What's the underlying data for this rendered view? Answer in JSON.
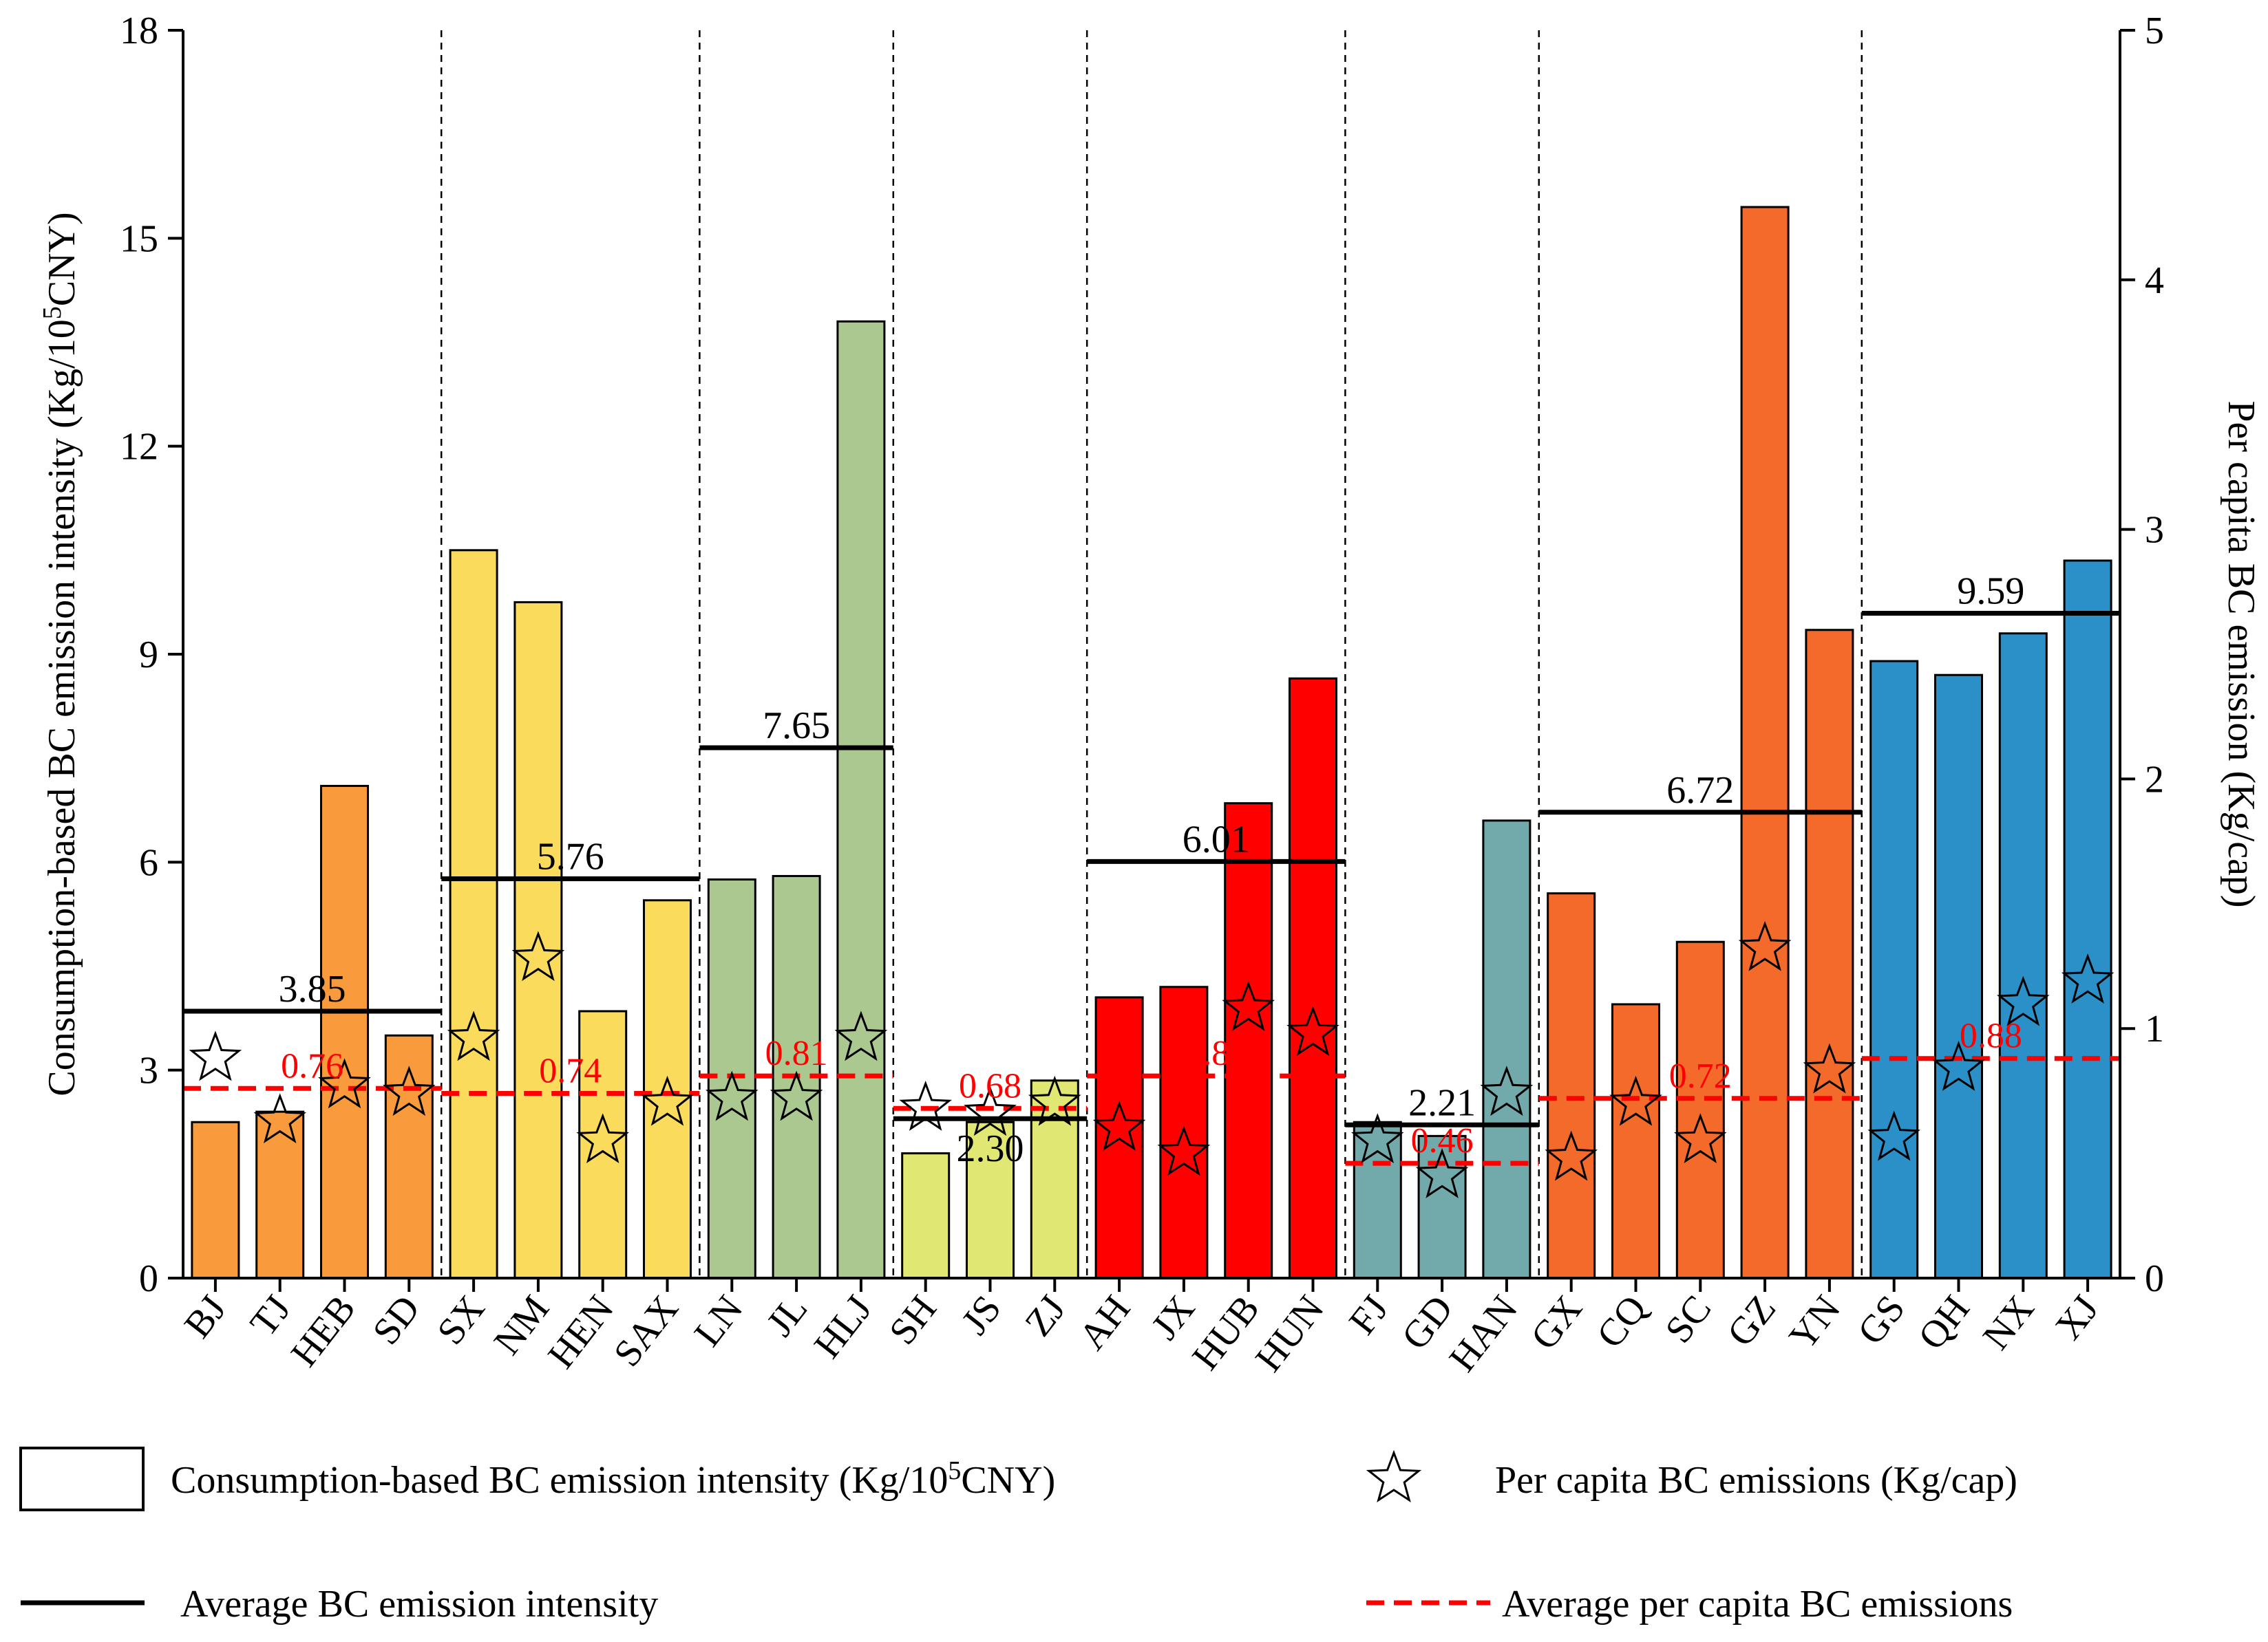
{
  "chart_data": {
    "type": "bar",
    "ylabel_left": {
      "main": "Consumption-based BC emission intensity (Kg/10",
      "sup": "5",
      "tail": "CNY)"
    },
    "ylabel_right": "Per capita BC emission (Kg/cap)",
    "ylim_left": [
      0,
      18
    ],
    "yticks_left": [
      "0",
      "3",
      "6",
      "9",
      "12",
      "15",
      "18"
    ],
    "ylim_right": [
      0,
      5
    ],
    "yticks_right": [
      "0",
      "1",
      "2",
      "3",
      "4",
      "5"
    ],
    "categories": [
      "BJ",
      "TJ",
      "HEB",
      "SD",
      "SX",
      "NM",
      "HEN",
      "SAX",
      "LN",
      "JL",
      "HLJ",
      "SH",
      "JS",
      "ZJ",
      "AH",
      "JX",
      "HUB",
      "HUN",
      "FJ",
      "GD",
      "HAN",
      "GX",
      "CQ",
      "SC",
      "GZ",
      "YN",
      "GS",
      "QH",
      "NX",
      "XJ"
    ],
    "intensity": [
      2.25,
      2.4,
      7.1,
      3.5,
      10.5,
      9.75,
      3.85,
      5.45,
      5.75,
      5.8,
      13.8,
      1.8,
      2.25,
      2.85,
      4.05,
      4.2,
      6.85,
      8.65,
      2.25,
      2.05,
      6.6,
      5.55,
      3.95,
      4.85,
      15.45,
      9.35,
      8.9,
      8.7,
      9.3,
      10.35
    ],
    "per_capita": [
      0.88,
      0.63,
      0.77,
      0.74,
      0.96,
      1.28,
      0.55,
      0.7,
      0.72,
      0.72,
      0.96,
      0.68,
      0.66,
      0.7,
      0.6,
      0.5,
      1.08,
      0.98,
      0.55,
      0.41,
      0.74,
      0.48,
      0.7,
      0.55,
      1.32,
      0.83,
      0.56,
      0.84,
      1.1,
      1.19
    ],
    "regions": [
      {
        "start": 0,
        "end": 3,
        "color": "#f99b3c",
        "avg_intensity": 3.85,
        "avg_intensity_label": "3.85",
        "avg_per_capita": 0.76,
        "avg_per_capita_label": "0.76"
      },
      {
        "start": 4,
        "end": 7,
        "color": "#fbdb5c",
        "avg_intensity": 5.76,
        "avg_intensity_label": "5.76",
        "avg_per_capita": 0.74,
        "avg_per_capita_label": "0.74"
      },
      {
        "start": 8,
        "end": 10,
        "color": "#aac88f",
        "avg_intensity": 7.65,
        "avg_intensity_label": "7.65",
        "avg_per_capita": 0.81,
        "avg_per_capita_label": "0.81"
      },
      {
        "start": 11,
        "end": 13,
        "color": "#e0e873",
        "avg_intensity": 2.3,
        "avg_intensity_label": "2.30",
        "avg_per_capita": 0.68,
        "avg_per_capita_label": "0.68"
      },
      {
        "start": 14,
        "end": 17,
        "color": "#ff0000",
        "avg_intensity": 6.01,
        "avg_intensity_label": "6.01",
        "avg_per_capita": 0.81,
        "avg_per_capita_label": "0.81"
      },
      {
        "start": 18,
        "end": 20,
        "color": "#72aaab",
        "avg_intensity": 2.21,
        "avg_intensity_label": "2.21",
        "avg_per_capita": 0.46,
        "avg_per_capita_label": "0.46"
      },
      {
        "start": 21,
        "end": 25,
        "color": "#f46a2b",
        "avg_intensity": 6.72,
        "avg_intensity_label": "6.72",
        "avg_per_capita": 0.72,
        "avg_per_capita_label": "0.72"
      },
      {
        "start": 26,
        "end": 29,
        "color": "#2a90c7",
        "avg_intensity": 9.59,
        "avg_intensity_label": "9.59",
        "avg_per_capita": 0.88,
        "avg_per_capita_label": "0.88"
      }
    ],
    "legend": {
      "bar": {
        "main": "Consumption-based BC emission intensity (Kg/10",
        "sup": "5",
        "tail": "CNY)"
      },
      "star": "Per capita BC emissions (Kg/cap)",
      "avg_line": "Average BC emission intensity",
      "avg_dash": "Average per capita BC emissions"
    },
    "colors": {
      "avg_intensity_line": "#000000",
      "avg_per_capita_line": "#ff0000",
      "axis": "#000000"
    }
  }
}
